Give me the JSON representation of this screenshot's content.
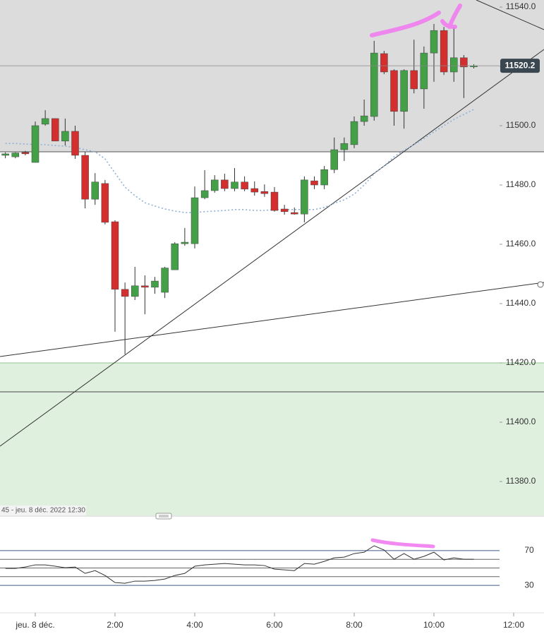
{
  "chart_data": [
    {
      "type": "candlestick",
      "x": [
        -0.75,
        -0.5,
        -0.25,
        0,
        0.25,
        0.5,
        0.75,
        1,
        1.25,
        1.5,
        1.75,
        2,
        2.25,
        2.5,
        2.75,
        3,
        3.25,
        3.5,
        3.75,
        4,
        4.25,
        4.5,
        4.75,
        5,
        5.25,
        5.5,
        5.75,
        6,
        6.25,
        6.5,
        6.75,
        7,
        7.25,
        7.5,
        7.75,
        8,
        8.25,
        8.5,
        8.75,
        9,
        9.25,
        9.5,
        9.75,
        10,
        10.25,
        10.5,
        10.75,
        11
      ],
      "open": [
        11490,
        11489.5,
        11491,
        11487.6,
        11500.5,
        11502.4,
        11494.8,
        11498.1,
        11490,
        11475.2,
        11480.5,
        11467.6,
        11444.8,
        11442.4,
        11446,
        11445.5,
        11443.8,
        11451.4,
        11460.2,
        11460.2,
        11475.7,
        11478.1,
        11481.7,
        11478.8,
        11481,
        11478.8,
        11477.8,
        11477.6,
        11471.9,
        11470.7,
        11470.2,
        11481.4,
        11480,
        11485.2,
        11491.9,
        11493.6,
        11501.4,
        11503.1,
        11524.3,
        11518.6,
        11504.8,
        11518.6,
        11512.4,
        11524.5,
        11532.1,
        11518.1,
        11522.9,
        11520
      ],
      "high": [
        11491,
        11491,
        11491.5,
        11501.4,
        11505.2,
        11502.4,
        11502.4,
        11500,
        11491.2,
        11484,
        11481.7,
        11468.1,
        11447.1,
        11452.4,
        11449.5,
        11449,
        11452.4,
        11460.7,
        11465.5,
        11479.5,
        11485,
        11483.3,
        11483.8,
        11485.7,
        11482.9,
        11481.2,
        11480.2,
        11479.3,
        11473.3,
        11472.4,
        11482.9,
        11482.9,
        11486.4,
        11496,
        11496,
        11503.1,
        11508.8,
        11528.6,
        11525.2,
        11519,
        11519,
        11529,
        11526.7,
        11534.3,
        11533.3,
        11533.3,
        11523.8,
        11520.7
      ],
      "low": [
        11489,
        11489,
        11490,
        11487.6,
        11500,
        11494.8,
        11493.3,
        11488.8,
        11472.1,
        11473.3,
        11466.7,
        11430.5,
        11422.9,
        11441.2,
        11436.4,
        11443.3,
        11441.9,
        11451.4,
        11459.5,
        11458.6,
        11475.2,
        11477.4,
        11477.9,
        11477.9,
        11477.9,
        11476.4,
        11476,
        11471,
        11470,
        11470,
        11467.4,
        11478.6,
        11478.6,
        11484,
        11488.1,
        11492.4,
        11500,
        11501.7,
        11517.4,
        11500,
        11499,
        11510.9,
        11505.7,
        11514.8,
        11517.1,
        11514.8,
        11509.3,
        11519.3
      ],
      "close": [
        11490.5,
        11490.8,
        11490.5,
        11500,
        11502.4,
        11494.8,
        11498.1,
        11490,
        11475.2,
        11481,
        11467.4,
        11444.8,
        11442.4,
        11446,
        11445.5,
        11447.6,
        11452,
        11460.2,
        11460.7,
        11475.7,
        11478.1,
        11481.7,
        11478.8,
        11481,
        11478.6,
        11477.6,
        11477.1,
        11471.4,
        11471,
        11470.2,
        11481.7,
        11480,
        11485.2,
        11491.9,
        11494,
        11501.4,
        11503.3,
        11524.5,
        11518.1,
        11504.8,
        11518.6,
        11512.4,
        11524.5,
        11532.1,
        11518.1,
        11522.9,
        11519.8,
        11520.2
      ],
      "up_color": "#43a047",
      "down_color": "#d32f2f",
      "moving_average": {
        "color": "#8fb0d6",
        "values": [
          11494,
          11494,
          11493.8,
          11493.6,
          11493.6,
          11493.3,
          11493.1,
          11492.6,
          11491.9,
          11491.2,
          11488.8,
          11484,
          11479.3,
          11476.4,
          11474,
          11472.9,
          11471.9,
          11471.2,
          11470.7,
          11470.7,
          11471,
          11471.2,
          11471.4,
          11471.7,
          11471.7,
          11471.4,
          11471.4,
          11471.7,
          11471.7,
          11471.7,
          11471.7,
          11471.7,
          11472.4,
          11473.8,
          11475,
          11476.9,
          11480,
          11483.8,
          11486.4,
          11489.5,
          11491.7,
          11493.6,
          11495.7,
          11497.9,
          11500,
          11502.1,
          11503.8,
          11505.5
        ]
      },
      "xlim": [
        -0.885,
        12.761
      ],
      "ylim": [
        11368.57,
        11542.38
      ],
      "yticks": [
        {
          "value": 11380,
          "label": "11380.0"
        },
        {
          "value": 11400,
          "label": "11400.0"
        },
        {
          "value": 11420,
          "label": "11420.0"
        },
        {
          "value": 11440,
          "label": "11440.0"
        },
        {
          "value": 11460,
          "label": "11460.0"
        },
        {
          "value": 11480,
          "label": "11480.0"
        },
        {
          "value": 11500,
          "label": "11500.0"
        },
        {
          "value": 11520,
          "label": "11520.0"
        },
        {
          "value": 11540,
          "label": "11540.0"
        }
      ],
      "note": "45 - jeu. 8 déc. 2022 12:30"
    },
    {
      "type": "line",
      "x": [
        -0.75,
        -0.5,
        -0.25,
        0,
        0.25,
        0.5,
        0.75,
        1,
        1.25,
        1.5,
        1.75,
        2,
        2.25,
        2.5,
        2.75,
        3,
        3.25,
        3.5,
        3.75,
        4,
        4.25,
        4.5,
        4.75,
        5,
        5.25,
        5.5,
        5.75,
        6,
        6.25,
        6.5,
        6.75,
        7,
        7.25,
        7.5,
        7.75,
        8,
        8.25,
        8.5,
        8.75,
        9,
        9.25,
        9.5,
        9.75,
        10,
        10.25,
        10.5,
        10.75,
        11
      ],
      "values": [
        49.5,
        49.5,
        51.1,
        53.6,
        53.6,
        52,
        50.3,
        51.1,
        43.8,
        47,
        41.4,
        33.2,
        32.4,
        34.9,
        34.9,
        35.7,
        37.3,
        41.4,
        43.8,
        52,
        53.6,
        54.4,
        55.2,
        54.4,
        53.6,
        53.6,
        52.8,
        48.7,
        47.9,
        47,
        55.2,
        54.4,
        57.6,
        61.7,
        62.5,
        66.6,
        68.2,
        75.6,
        70.7,
        60.1,
        66.6,
        60.1,
        63.4,
        68.2,
        59.3,
        61.7,
        60.1,
        60.1
      ],
      "color": "#333333",
      "level_color": "#3b5a8a",
      "xlim": [
        -0.885,
        12.761
      ],
      "ylim": [
        0,
        100
      ],
      "yticks": [
        30,
        70
      ],
      "levels": [
        40,
        50,
        60
      ],
      "xticks": [
        {
          "value": 0,
          "label": "jeu. 8 déc."
        },
        {
          "value": 2,
          "label": "2:00"
        },
        {
          "value": 4,
          "label": "4:00"
        },
        {
          "value": 6,
          "label": "6:00"
        },
        {
          "value": 8,
          "label": "8:00"
        },
        {
          "value": 10,
          "label": "10:00"
        },
        {
          "value": 12,
          "label": "12:00"
        }
      ]
    }
  ]
}
